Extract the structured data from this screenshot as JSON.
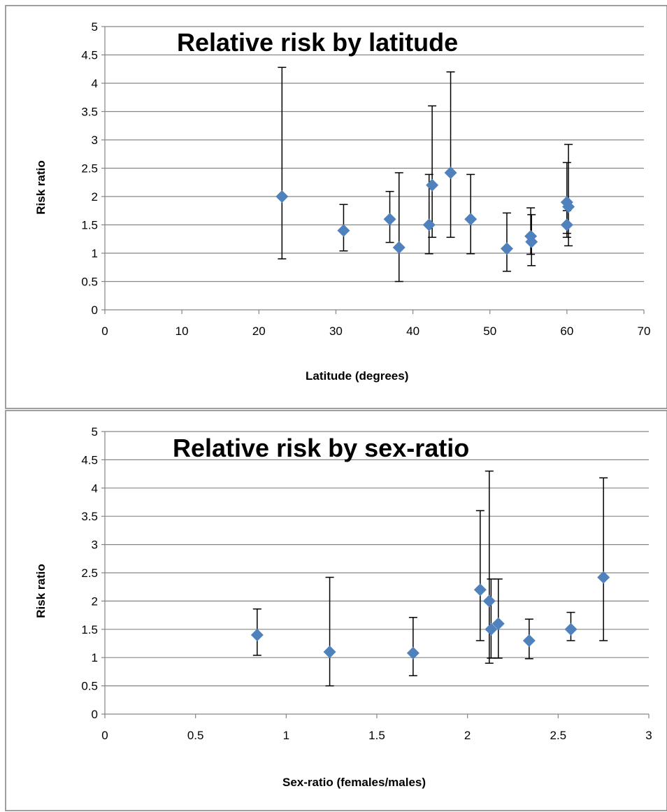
{
  "charts": [
    {
      "chart_data": {
        "type": "scatter",
        "title": "Relative risk by latitude",
        "xlabel": "Latitude (degrees)",
        "ylabel": "Risk ratio",
        "xlim": [
          0,
          70
        ],
        "ylim": [
          0,
          5
        ],
        "xticks": [
          0,
          10,
          20,
          30,
          40,
          50,
          60,
          70
        ],
        "xtick_labels": [
          "0",
          "10",
          "20",
          "30",
          "40",
          "50",
          "60",
          "70"
        ],
        "yticks": [
          0,
          0.5,
          1,
          1.5,
          2,
          2.5,
          3,
          3.5,
          4,
          4.5,
          5
        ],
        "ytick_labels": [
          "0",
          "0.5",
          "1",
          "1.5",
          "2",
          "2.5",
          "3",
          "3.5",
          "4",
          "4.5",
          "5"
        ],
        "grid": "horizontal",
        "marker": "diamond",
        "marker_color": "#4f81bd",
        "errorbar_color": "#000000",
        "points": [
          {
            "x": 23.0,
            "y": 2.0,
            "low": 0.9,
            "high": 4.28
          },
          {
            "x": 31.0,
            "y": 1.4,
            "low": 1.04,
            "high": 1.86
          },
          {
            "x": 37.0,
            "y": 1.6,
            "low": 1.19,
            "high": 2.09
          },
          {
            "x": 38.2,
            "y": 1.1,
            "low": 0.5,
            "high": 2.42
          },
          {
            "x": 42.1,
            "y": 1.5,
            "low": 0.99,
            "high": 2.39
          },
          {
            "x": 42.5,
            "y": 2.2,
            "low": 1.28,
            "high": 3.6
          },
          {
            "x": 44.9,
            "y": 2.42,
            "low": 1.28,
            "high": 4.2
          },
          {
            "x": 47.5,
            "y": 1.6,
            "low": 0.99,
            "high": 2.39
          },
          {
            "x": 52.2,
            "y": 1.08,
            "low": 0.68,
            "high": 1.71
          },
          {
            "x": 55.3,
            "y": 1.3,
            "low": 0.98,
            "high": 1.8
          },
          {
            "x": 55.4,
            "y": 1.2,
            "low": 0.78,
            "high": 1.68
          },
          {
            "x": 60.0,
            "y": 1.9,
            "low": 1.35,
            "high": 2.6
          },
          {
            "x": 60.2,
            "y": 1.82,
            "low": 1.13,
            "high": 2.92
          },
          {
            "x": 60.0,
            "y": 1.5,
            "low": 1.28,
            "high": 1.75
          }
        ]
      }
    },
    {
      "chart_data": {
        "type": "scatter",
        "title": "Relative risk by sex-ratio",
        "xlabel": "Sex-ratio (females/males)",
        "ylabel": "Risk ratio",
        "xlim": [
          0,
          3
        ],
        "ylim": [
          0,
          5
        ],
        "xticks": [
          0,
          0.5,
          1,
          1.5,
          2,
          2.5,
          3
        ],
        "xtick_labels": [
          "0",
          "0.5",
          "1",
          "1.5",
          "2",
          "2.5",
          "3"
        ],
        "yticks": [
          0,
          0.5,
          1,
          1.5,
          2,
          2.5,
          3,
          3.5,
          4,
          4.5,
          5
        ],
        "ytick_labels": [
          "0",
          "0.5",
          "1",
          "1.5",
          "2",
          "2.5",
          "3",
          "3.5",
          "4",
          "4.5",
          "5"
        ],
        "grid": "horizontal",
        "marker": "diamond",
        "marker_color": "#4f81bd",
        "errorbar_color": "#000000",
        "points": [
          {
            "x": 0.84,
            "y": 1.4,
            "low": 1.04,
            "high": 1.86
          },
          {
            "x": 1.24,
            "y": 1.1,
            "low": 0.5,
            "high": 2.42
          },
          {
            "x": 1.7,
            "y": 1.08,
            "low": 0.68,
            "high": 1.71
          },
          {
            "x": 2.07,
            "y": 2.2,
            "low": 1.3,
            "high": 3.6
          },
          {
            "x": 2.12,
            "y": 2.0,
            "low": 0.9,
            "high": 4.3
          },
          {
            "x": 2.13,
            "y": 1.5,
            "low": 0.99,
            "high": 2.39
          },
          {
            "x": 2.17,
            "y": 1.6,
            "low": 0.99,
            "high": 2.39
          },
          {
            "x": 2.34,
            "y": 1.3,
            "low": 0.98,
            "high": 1.68
          },
          {
            "x": 2.57,
            "y": 1.5,
            "low": 1.3,
            "high": 1.8
          },
          {
            "x": 2.75,
            "y": 2.42,
            "low": 1.3,
            "high": 4.18
          }
        ]
      }
    }
  ]
}
